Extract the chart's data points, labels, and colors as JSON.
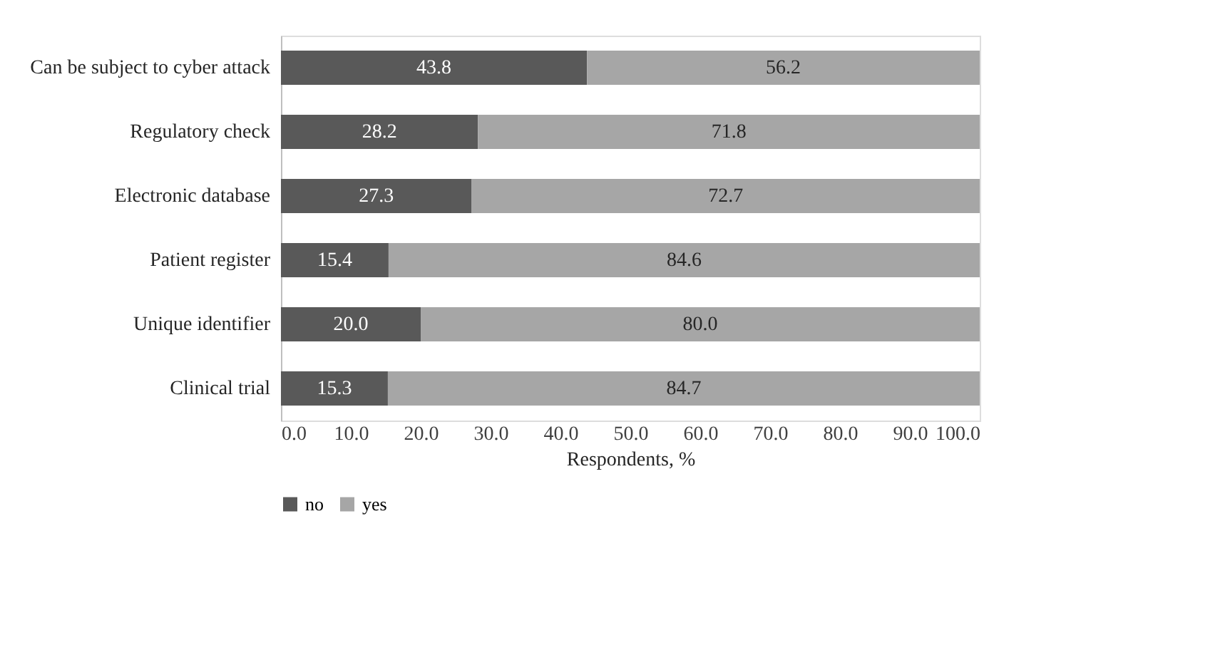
{
  "chart_data": {
    "type": "bar",
    "orientation": "horizontal",
    "stacked": true,
    "xlabel": "Respondents, %",
    "categories": [
      "Can be subject to cyber attack",
      "Regulatory check",
      "Electronic database",
      "Patient register",
      "Unique identifier",
      "Clinical trial"
    ],
    "series": [
      {
        "name": "no",
        "color": "#595959",
        "values": [
          43.8,
          28.2,
          27.3,
          15.4,
          20.0,
          15.3
        ],
        "value_labels": [
          "43.8",
          "28.2",
          "27.3",
          "15.4",
          "20.0",
          "15.3"
        ]
      },
      {
        "name": "yes",
        "color": "#a6a6a6",
        "values": [
          56.2,
          71.8,
          72.7,
          84.6,
          80.0,
          84.7
        ],
        "value_labels": [
          "56.2",
          "71.8",
          "72.7",
          "84.6",
          "80.0",
          "84.7"
        ]
      }
    ],
    "xlim": [
      0,
      100
    ],
    "xticks": [
      {
        "value": 0,
        "label": "0.0"
      },
      {
        "value": 10,
        "label": "10.0"
      },
      {
        "value": 20,
        "label": "20.0"
      },
      {
        "value": 30,
        "label": "30.0"
      },
      {
        "value": 40,
        "label": "40.0"
      },
      {
        "value": 50,
        "label": "50.0"
      },
      {
        "value": 60,
        "label": "60.0"
      },
      {
        "value": 70,
        "label": "70.0"
      },
      {
        "value": 80,
        "label": "80.0"
      },
      {
        "value": 90,
        "label": "90.0"
      },
      {
        "value": 100,
        "label": "100.0"
      }
    ],
    "legend": "bottom",
    "grid": false
  }
}
